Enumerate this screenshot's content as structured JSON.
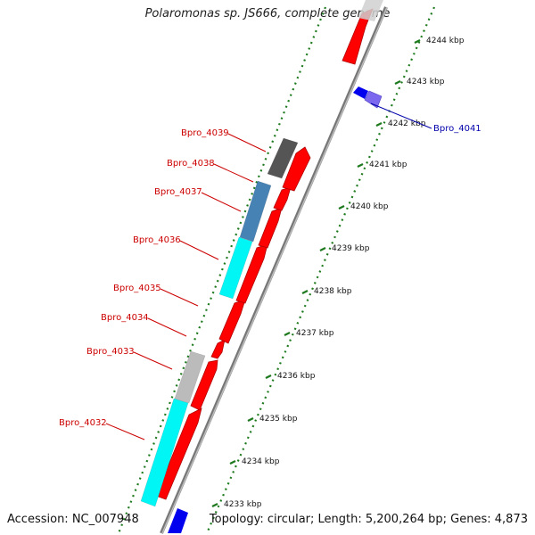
{
  "title": "Polaromonas sp. JS666, complete genome",
  "footer": {
    "accession": "Accession: NC_007948",
    "summary": "Topology: circular; Length: 5,200,264 bp; Genes: 4,873"
  },
  "ticks": [
    {
      "kbp": 4233,
      "label": "4233 kbp"
    },
    {
      "kbp": 4234,
      "label": "4234 kbp"
    },
    {
      "kbp": 4235,
      "label": "4235 kbp"
    },
    {
      "kbp": 4236,
      "label": "4236 kbp"
    },
    {
      "kbp": 4237,
      "label": "4237 kbp"
    },
    {
      "kbp": 4238,
      "label": "4238 kbp"
    },
    {
      "kbp": 4239,
      "label": "4239 kbp"
    },
    {
      "kbp": 4240,
      "label": "4240 kbp"
    },
    {
      "kbp": 4241,
      "label": "4241 kbp"
    },
    {
      "kbp": 4242,
      "label": "4242 kbp"
    },
    {
      "kbp": 4243,
      "label": "4243 kbp"
    },
    {
      "kbp": 4244,
      "label": "4244 kbp"
    }
  ],
  "gene_labels": [
    {
      "name": "Bpro_4039",
      "color": "#cc0000"
    },
    {
      "name": "Bpro_4038",
      "color": "#cc0000"
    },
    {
      "name": "Bpro_4037",
      "color": "#cc0000"
    },
    {
      "name": "Bpro_4036",
      "color": "#cc0000"
    },
    {
      "name": "Bpro_4035",
      "color": "#cc0000"
    },
    {
      "name": "Bpro_4034",
      "color": "#cc0000"
    },
    {
      "name": "Bpro_4033",
      "color": "#cc0000"
    },
    {
      "name": "Bpro_4032",
      "color": "#cc0000"
    },
    {
      "name": "Bpro_4041",
      "color": "#0000aa"
    }
  ],
  "colors": {
    "cds": "#ff0000",
    "cog_gray": "#555555",
    "cog_steelblue": "#4682b4",
    "cog_cyan": "#00f5f5",
    "cog_lightgray": "#bbbbbb",
    "blue_gene": "#0000ee",
    "purple_gene": "#7b68ee",
    "backbone": "#888888",
    "tick_green": "#1e7a1e"
  }
}
